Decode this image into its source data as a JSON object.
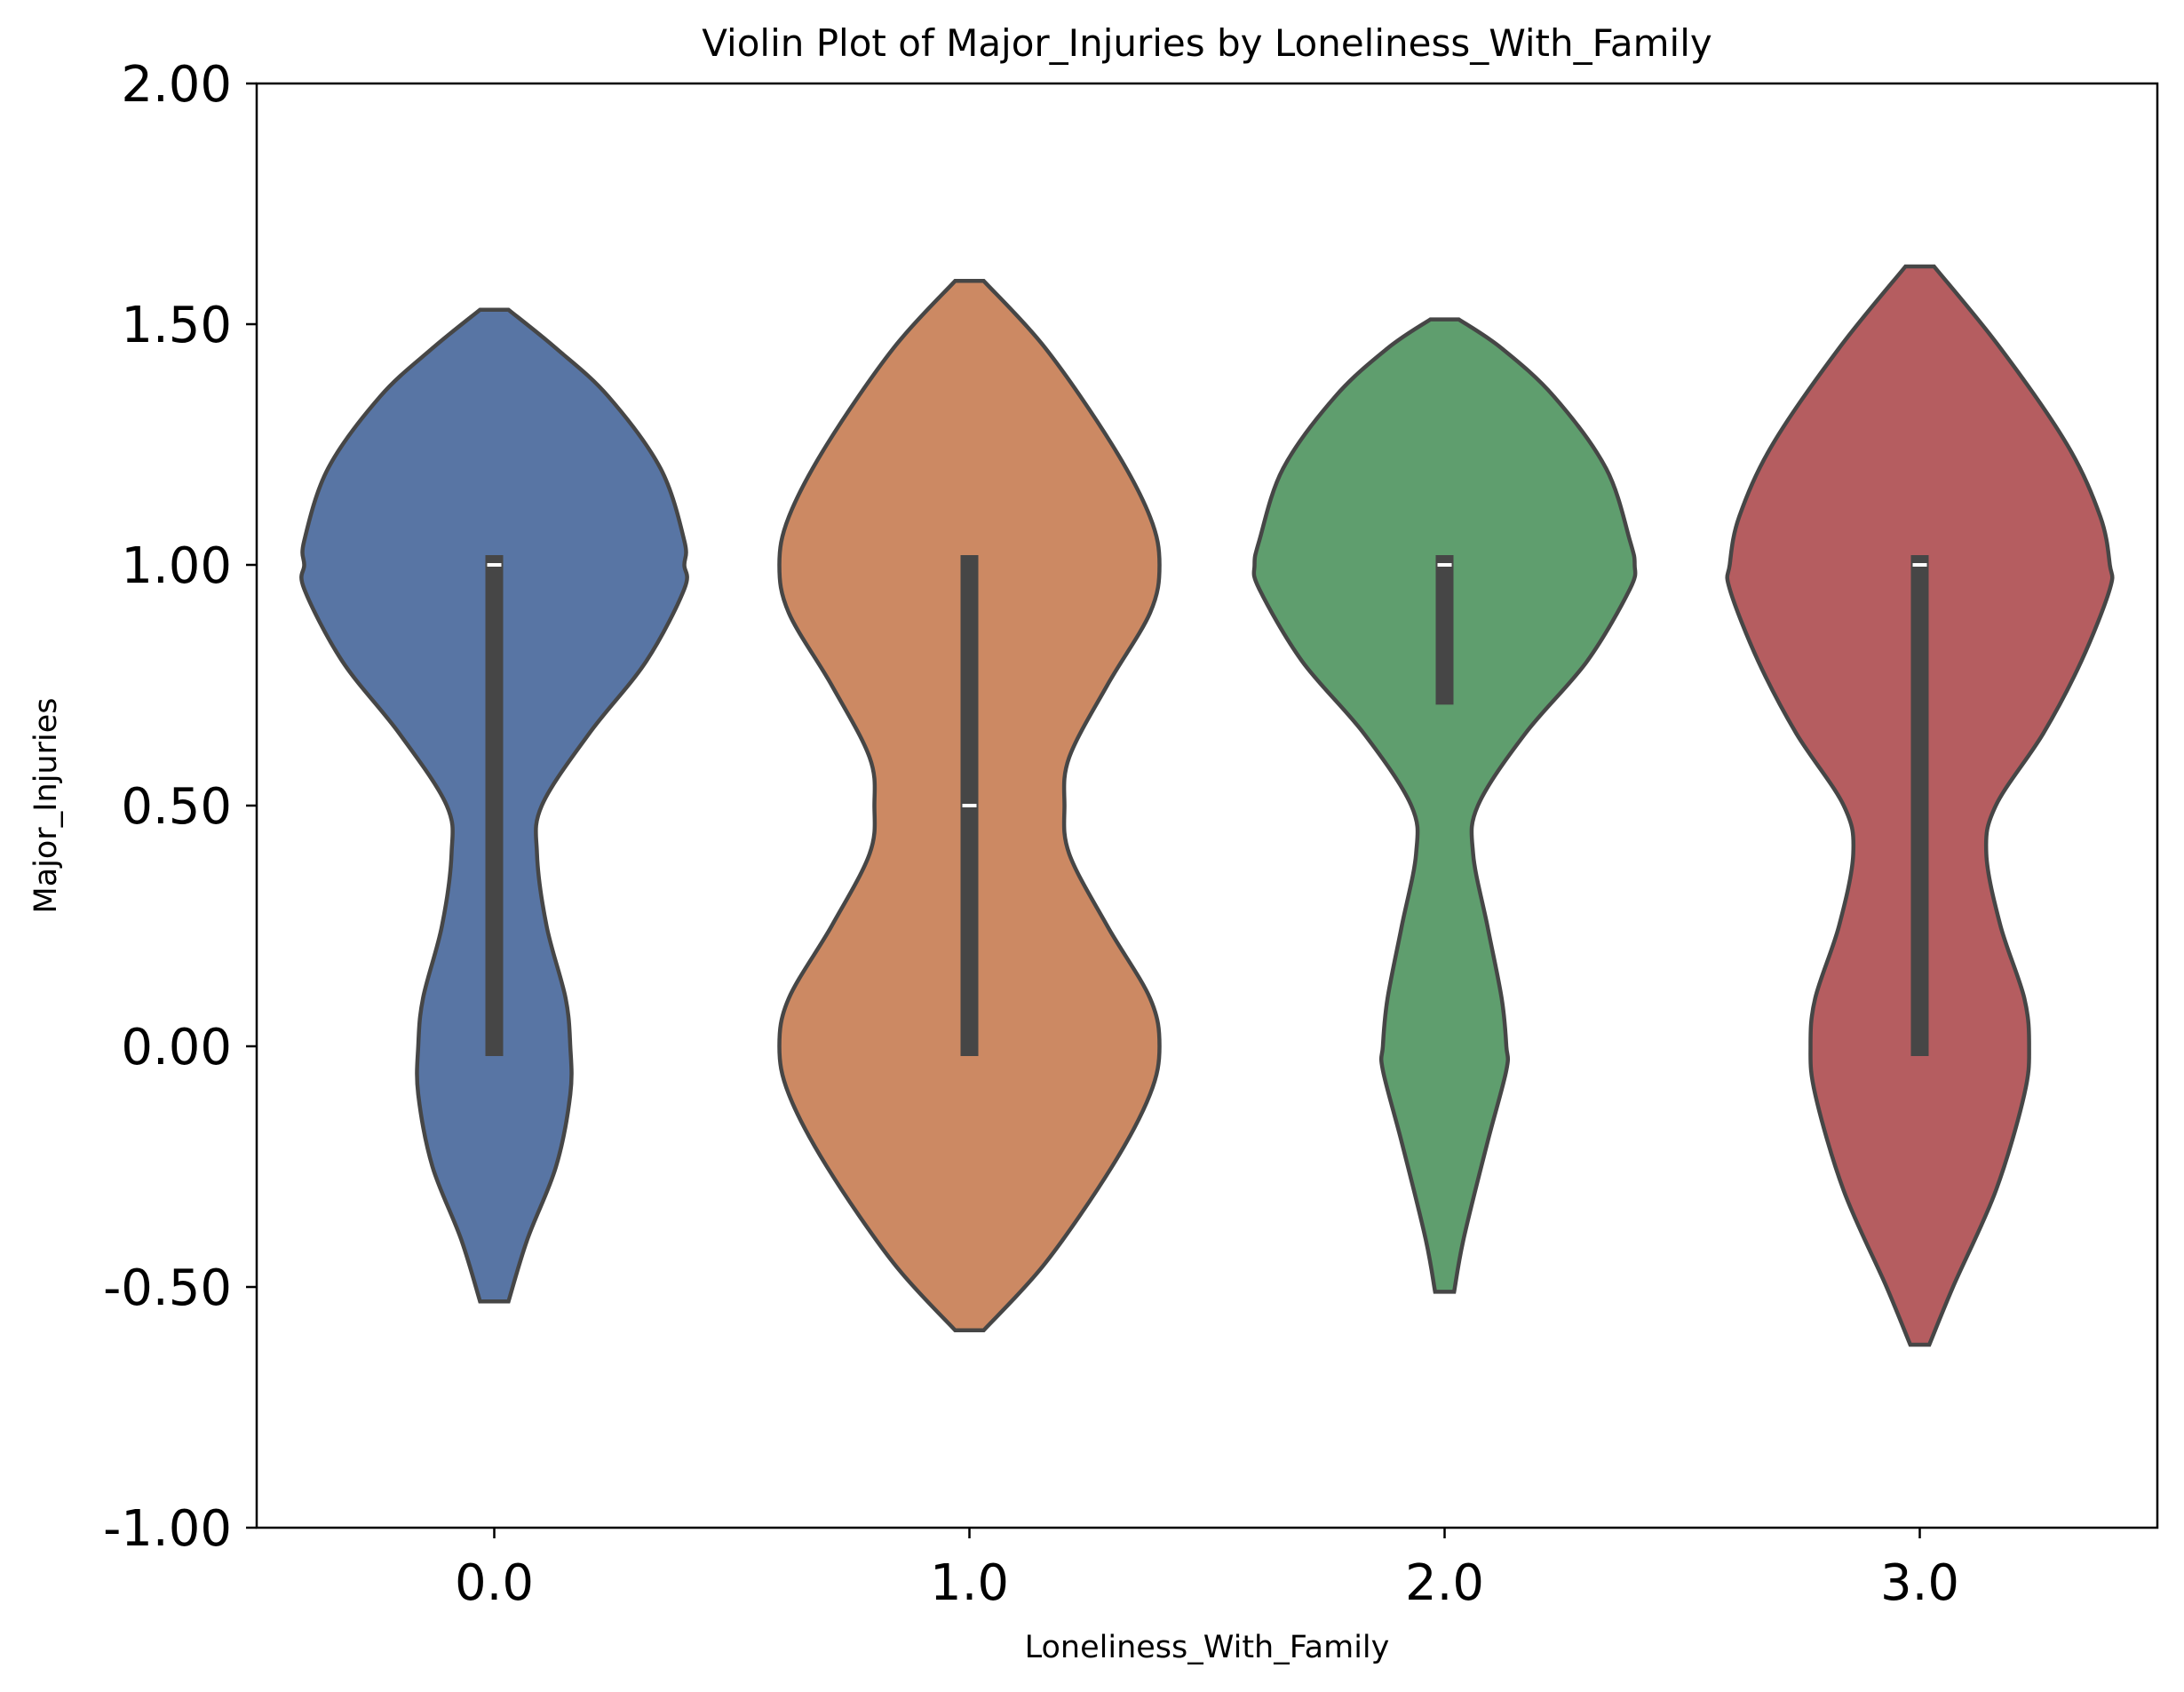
{
  "chart_data": {
    "type": "violin",
    "title": "Violin Plot of Major_Injuries by Loneliness_With_Family",
    "xlabel": "Loneliness_With_Family",
    "ylabel": "Major_Injuries",
    "categories": [
      "0.0",
      "1.0",
      "2.0",
      "3.0"
    ],
    "ylim": [
      -1.0,
      2.0
    ],
    "yticks": [
      -1.0,
      -0.5,
      0.0,
      0.5,
      1.0,
      1.5,
      2.0
    ],
    "ytick_labels": [
      "-1.00",
      "-0.50",
      "0.00",
      "0.50",
      "1.00",
      "1.50",
      "2.00"
    ],
    "grid": false,
    "legend": "none",
    "colors": [
      "#5875a4",
      "#cc8963",
      "#5f9e6e",
      "#b55d60"
    ],
    "edge_color": "#464646",
    "violins": [
      {
        "category": "0.0",
        "median": 1.0,
        "q1": 0.0,
        "q3": 1.0,
        "min": 0.0,
        "max": 1.0,
        "kde_min": -0.53,
        "kde_max": 1.53,
        "profile": [
          [
            -0.53,
            0.03
          ],
          [
            -0.4,
            0.07
          ],
          [
            -0.25,
            0.13
          ],
          [
            -0.1,
            0.16
          ],
          [
            0.0,
            0.16
          ],
          [
            0.1,
            0.15
          ],
          [
            0.25,
            0.11
          ],
          [
            0.4,
            0.09
          ],
          [
            0.5,
            0.1
          ],
          [
            0.65,
            0.2
          ],
          [
            0.8,
            0.32
          ],
          [
            0.95,
            0.4
          ],
          [
            1.0,
            0.4
          ],
          [
            1.05,
            0.4
          ],
          [
            1.2,
            0.35
          ],
          [
            1.35,
            0.24
          ],
          [
            1.45,
            0.13
          ],
          [
            1.53,
            0.03
          ]
        ]
      },
      {
        "category": "1.0",
        "median": 0.5,
        "q1": 0.0,
        "q3": 1.0,
        "min": 0.0,
        "max": 1.0,
        "kde_min": -0.59,
        "kde_max": 1.59,
        "profile": [
          [
            -0.59,
            0.03
          ],
          [
            -0.45,
            0.16
          ],
          [
            -0.25,
            0.3
          ],
          [
            -0.1,
            0.38
          ],
          [
            0.0,
            0.4
          ],
          [
            0.1,
            0.38
          ],
          [
            0.25,
            0.29
          ],
          [
            0.4,
            0.21
          ],
          [
            0.5,
            0.2
          ],
          [
            0.6,
            0.21
          ],
          [
            0.75,
            0.29
          ],
          [
            0.9,
            0.38
          ],
          [
            1.0,
            0.4
          ],
          [
            1.1,
            0.38
          ],
          [
            1.25,
            0.3
          ],
          [
            1.45,
            0.16
          ],
          [
            1.59,
            0.03
          ]
        ]
      },
      {
        "category": "2.0",
        "median": 1.0,
        "q1": 0.73,
        "q3": 1.0,
        "min": 0.73,
        "max": 1.0,
        "kde_min": -0.51,
        "kde_max": 1.51,
        "profile": [
          [
            -0.51,
            0.02
          ],
          [
            -0.4,
            0.04
          ],
          [
            -0.2,
            0.09
          ],
          [
            -0.05,
            0.13
          ],
          [
            0.0,
            0.13
          ],
          [
            0.1,
            0.12
          ],
          [
            0.25,
            0.09
          ],
          [
            0.4,
            0.06
          ],
          [
            0.5,
            0.07
          ],
          [
            0.65,
            0.17
          ],
          [
            0.8,
            0.3
          ],
          [
            0.95,
            0.39
          ],
          [
            1.0,
            0.4
          ],
          [
            1.05,
            0.39
          ],
          [
            1.2,
            0.34
          ],
          [
            1.35,
            0.23
          ],
          [
            1.45,
            0.12
          ],
          [
            1.51,
            0.03
          ]
        ]
      },
      {
        "category": "3.0",
        "median": 1.0,
        "q1": 0.0,
        "q3": 1.0,
        "min": 0.0,
        "max": 1.0,
        "kde_min": -0.62,
        "kde_max": 1.62,
        "profile": [
          [
            -0.62,
            0.02
          ],
          [
            -0.5,
            0.07
          ],
          [
            -0.3,
            0.16
          ],
          [
            -0.1,
            0.22
          ],
          [
            0.0,
            0.23
          ],
          [
            0.1,
            0.22
          ],
          [
            0.25,
            0.17
          ],
          [
            0.4,
            0.14
          ],
          [
            0.5,
            0.16
          ],
          [
            0.65,
            0.26
          ],
          [
            0.8,
            0.34
          ],
          [
            0.95,
            0.4
          ],
          [
            1.0,
            0.4
          ],
          [
            1.1,
            0.38
          ],
          [
            1.25,
            0.31
          ],
          [
            1.45,
            0.17
          ],
          [
            1.62,
            0.03
          ]
        ]
      }
    ]
  }
}
